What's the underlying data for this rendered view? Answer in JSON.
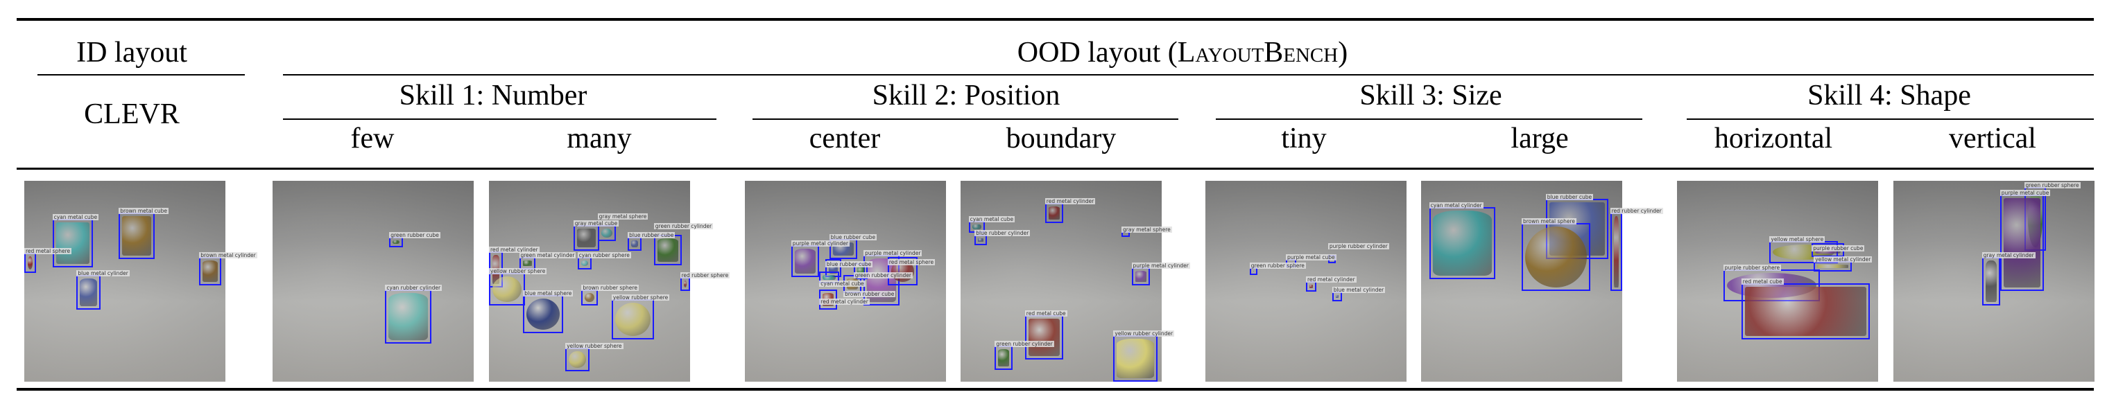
{
  "header": {
    "id_layout": "ID layout",
    "clevr": "CLEVR",
    "ood_layout_prefix": "OOD layout (",
    "ood_layout_bench": "LayoutBench",
    "ood_layout_suffix": ")",
    "skills": [
      {
        "title": "Skill 1: Number",
        "subsets": [
          "few",
          "many"
        ]
      },
      {
        "title": "Skill 2: Position",
        "subsets": [
          "center",
          "boundary"
        ]
      },
      {
        "title": "Skill 3: Size",
        "subsets": [
          "tiny",
          "large"
        ]
      },
      {
        "title": "Skill 4: Shape",
        "subsets": [
          "horizontal",
          "vertical"
        ]
      }
    ]
  },
  "box_color": "#1a1aff",
  "panels": [
    {
      "name": "clevr",
      "objects": [
        {
          "label": "cyan metal cube",
          "color": "#4aa8a8"
        },
        {
          "label": "brown metal cube",
          "color": "#8a6a2a"
        },
        {
          "label": "red metal sphere",
          "color": "#8a2020"
        },
        {
          "label": "blue metal cylinder",
          "color": "#4a5a9a"
        },
        {
          "label": "brown metal cylinder",
          "color": "#7a5a2a"
        }
      ]
    },
    {
      "name": "few",
      "objects": [
        {
          "label": "green rubber cube",
          "color": "#3a6a2a"
        },
        {
          "label": "cyan rubber cylinder",
          "color": "#6ab8b0"
        }
      ]
    },
    {
      "name": "many",
      "objects": [
        {
          "label": "gray metal cube",
          "color": "#555555"
        },
        {
          "label": "gray metal sphere",
          "color": "#4a9a9a"
        },
        {
          "label": "blue rubber cube",
          "color": "#4a5a9a"
        },
        {
          "label": "green rubber cylinder",
          "color": "#3a6a2a"
        },
        {
          "label": "red metal cylinder",
          "color": "#8a3030"
        },
        {
          "label": "green metal cylinder",
          "color": "#3a6a2a"
        },
        {
          "label": "cyan rubber sphere",
          "color": "#5ab0b0"
        },
        {
          "label": "yellow rubber sphere",
          "color": "#c8c070"
        },
        {
          "label": "red rubber sphere",
          "color": "#8a3030"
        },
        {
          "label": "blue metal sphere",
          "color": "#2a3a7a"
        },
        {
          "label": "brown rubber sphere",
          "color": "#8a6a3a"
        },
        {
          "label": "yellow rubber sphere",
          "color": "#c8c070"
        },
        {
          "label": "yellow rubber sphere",
          "color": "#c8c070"
        }
      ]
    },
    {
      "name": "center",
      "objects": [
        {
          "label": "purple metal cylinder",
          "color": "#7a4aa0"
        },
        {
          "label": "blue rubber cube",
          "color": "#4a5a9a"
        },
        {
          "label": "purple metal cylinder",
          "color": "#9a5ab0"
        },
        {
          "label": "red metal sphere",
          "color": "#8a3030"
        },
        {
          "label": "blue rubber cube",
          "color": "#4a5a9a"
        },
        {
          "label": "green rubber cylinder",
          "color": "#3a7a3a"
        },
        {
          "label": "cyan metal cube",
          "color": "#3a9a8a"
        },
        {
          "label": "brown rubber cube",
          "color": "#9a7a3a"
        },
        {
          "label": "red metal cylinder",
          "color": "#9a3a2a"
        }
      ]
    },
    {
      "name": "boundary",
      "objects": [
        {
          "label": "red metal cylinder",
          "color": "#7a2a2a"
        },
        {
          "label": "cyan metal cube",
          "color": "#3a7a7a"
        },
        {
          "label": "blue rubber cylinder",
          "color": "#4a5a8a"
        },
        {
          "label": "gray metal sphere",
          "color": "#444444"
        },
        {
          "label": "purple metal cylinder",
          "color": "#7a4a9a"
        },
        {
          "label": "red metal cube",
          "color": "#8a3a30"
        },
        {
          "label": "green rubber cylinder",
          "color": "#3a6a2a"
        },
        {
          "label": "yellow rubber cylinder",
          "color": "#d8d070"
        }
      ]
    },
    {
      "name": "tiny",
      "objects": [
        {
          "label": "purple metal cube",
          "color": "#7a4a9a"
        },
        {
          "label": "purple rubber cylinder",
          "color": "#8a5aa0"
        },
        {
          "label": "green rubber sphere",
          "color": "#3a6a2a"
        },
        {
          "label": "red metal cylinder",
          "color": "#8a3030"
        },
        {
          "label": "blue metal cylinder",
          "color": "#4a5a9a"
        }
      ]
    },
    {
      "name": "large",
      "objects": [
        {
          "label": "cyan metal cylinder",
          "color": "#3a9a9a"
        },
        {
          "label": "blue rubber cube",
          "color": "#4a5a9a"
        },
        {
          "label": "brown metal sphere",
          "color": "#8a6a2a"
        },
        {
          "label": "red rubber cylinder",
          "color": "#8a3030"
        }
      ]
    },
    {
      "name": "horizontal",
      "objects": [
        {
          "label": "yellow metal sphere",
          "color": "#9a9a3a"
        },
        {
          "label": "purple rubber cube",
          "color": "#7a4a9a"
        },
        {
          "label": "yellow metal cylinder",
          "color": "#b8b060"
        },
        {
          "label": "purple rubber sphere",
          "color": "#7a4aa0"
        },
        {
          "label": "red metal cube",
          "color": "#8a3a38"
        }
      ]
    },
    {
      "name": "vertical",
      "objects": [
        {
          "label": "green rubber sphere",
          "color": "#3a6a2a"
        },
        {
          "label": "purple metal cube",
          "color": "#5a2a7a"
        },
        {
          "label": "gray metal cylinder",
          "color": "#505050"
        }
      ]
    }
  ]
}
